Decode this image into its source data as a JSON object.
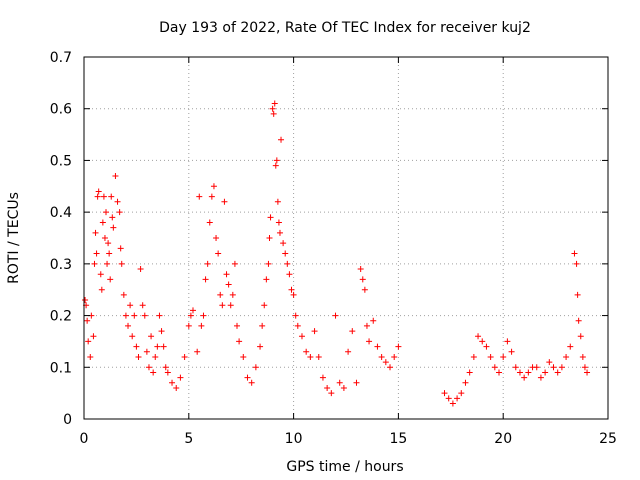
{
  "chart_data": {
    "type": "scatter",
    "title": "Day 193 of 2022, Rate Of TEC Index for receiver kuj2",
    "xlabel": "GPS time / hours",
    "ylabel": "ROTI / TECUs",
    "xlim": [
      0,
      25
    ],
    "ylim": [
      0,
      0.7
    ],
    "xticks": [
      "0",
      "5",
      "10",
      "15",
      "20",
      "25"
    ],
    "yticks": [
      "0",
      "0.1",
      "0.2",
      "0.3",
      "0.4",
      "0.5",
      "0.6",
      "0.7"
    ],
    "grid": true,
    "marker": "plus",
    "color": "#ff0000",
    "series": [
      {
        "points": [
          [
            0.05,
            0.23
          ],
          [
            0.1,
            0.22
          ],
          [
            0.15,
            0.19
          ],
          [
            0.2,
            0.15
          ],
          [
            0.3,
            0.12
          ],
          [
            0.35,
            0.2
          ],
          [
            0.45,
            0.16
          ],
          [
            0.5,
            0.3
          ],
          [
            0.55,
            0.36
          ],
          [
            0.6,
            0.32
          ],
          [
            0.65,
            0.43
          ],
          [
            0.7,
            0.44
          ],
          [
            0.8,
            0.28
          ],
          [
            0.85,
            0.25
          ],
          [
            0.9,
            0.38
          ],
          [
            0.95,
            0.43
          ],
          [
            1.0,
            0.35
          ],
          [
            1.05,
            0.4
          ],
          [
            1.1,
            0.3
          ],
          [
            1.15,
            0.34
          ],
          [
            1.2,
            0.32
          ],
          [
            1.25,
            0.27
          ],
          [
            1.3,
            0.43
          ],
          [
            1.35,
            0.39
          ],
          [
            1.4,
            0.37
          ],
          [
            1.5,
            0.47
          ],
          [
            1.6,
            0.42
          ],
          [
            1.7,
            0.4
          ],
          [
            1.75,
            0.33
          ],
          [
            1.8,
            0.3
          ],
          [
            1.9,
            0.24
          ],
          [
            2.0,
            0.2
          ],
          [
            2.1,
            0.18
          ],
          [
            2.2,
            0.22
          ],
          [
            2.3,
            0.16
          ],
          [
            2.4,
            0.2
          ],
          [
            2.5,
            0.14
          ],
          [
            2.6,
            0.12
          ],
          [
            2.7,
            0.29
          ],
          [
            2.8,
            0.22
          ],
          [
            2.9,
            0.2
          ],
          [
            3.0,
            0.13
          ],
          [
            3.1,
            0.1
          ],
          [
            3.2,
            0.16
          ],
          [
            3.3,
            0.09
          ],
          [
            3.4,
            0.12
          ],
          [
            3.5,
            0.14
          ],
          [
            3.6,
            0.2
          ],
          [
            3.7,
            0.17
          ],
          [
            3.8,
            0.14
          ],
          [
            3.9,
            0.1
          ],
          [
            4.0,
            0.09
          ],
          [
            4.2,
            0.07
          ],
          [
            4.4,
            0.06
          ],
          [
            4.6,
            0.08
          ],
          [
            4.8,
            0.12
          ],
          [
            5.0,
            0.18
          ],
          [
            5.1,
            0.2
          ],
          [
            5.2,
            0.21
          ],
          [
            5.4,
            0.13
          ],
          [
            5.5,
            0.43
          ],
          [
            5.6,
            0.18
          ],
          [
            5.7,
            0.2
          ],
          [
            5.8,
            0.27
          ],
          [
            5.9,
            0.3
          ],
          [
            6.0,
            0.38
          ],
          [
            6.1,
            0.43
          ],
          [
            6.2,
            0.45
          ],
          [
            6.3,
            0.35
          ],
          [
            6.4,
            0.32
          ],
          [
            6.5,
            0.24
          ],
          [
            6.6,
            0.22
          ],
          [
            6.7,
            0.42
          ],
          [
            6.8,
            0.28
          ],
          [
            6.9,
            0.26
          ],
          [
            7.0,
            0.22
          ],
          [
            7.1,
            0.24
          ],
          [
            7.2,
            0.3
          ],
          [
            7.3,
            0.18
          ],
          [
            7.4,
            0.15
          ],
          [
            7.6,
            0.12
          ],
          [
            7.8,
            0.08
          ],
          [
            8.0,
            0.07
          ],
          [
            8.2,
            0.1
          ],
          [
            8.4,
            0.14
          ],
          [
            8.5,
            0.18
          ],
          [
            8.6,
            0.22
          ],
          [
            8.7,
            0.27
          ],
          [
            8.8,
            0.3
          ],
          [
            8.85,
            0.35
          ],
          [
            8.9,
            0.39
          ],
          [
            9.0,
            0.6
          ],
          [
            9.05,
            0.59
          ],
          [
            9.1,
            0.61
          ],
          [
            9.15,
            0.49
          ],
          [
            9.2,
            0.5
          ],
          [
            9.25,
            0.42
          ],
          [
            9.3,
            0.38
          ],
          [
            9.35,
            0.36
          ],
          [
            9.4,
            0.54
          ],
          [
            9.5,
            0.34
          ],
          [
            9.6,
            0.32
          ],
          [
            9.7,
            0.3
          ],
          [
            9.8,
            0.28
          ],
          [
            9.9,
            0.25
          ],
          [
            10.0,
            0.24
          ],
          [
            10.1,
            0.2
          ],
          [
            10.2,
            0.18
          ],
          [
            10.4,
            0.16
          ],
          [
            10.6,
            0.13
          ],
          [
            10.8,
            0.12
          ],
          [
            11.0,
            0.17
          ],
          [
            11.2,
            0.12
          ],
          [
            11.4,
            0.08
          ],
          [
            11.6,
            0.06
          ],
          [
            11.8,
            0.05
          ],
          [
            12.0,
            0.2
          ],
          [
            12.2,
            0.07
          ],
          [
            12.4,
            0.06
          ],
          [
            12.6,
            0.13
          ],
          [
            12.8,
            0.17
          ],
          [
            13.0,
            0.07
          ],
          [
            13.2,
            0.29
          ],
          [
            13.3,
            0.27
          ],
          [
            13.4,
            0.25
          ],
          [
            13.5,
            0.18
          ],
          [
            13.6,
            0.15
          ],
          [
            13.8,
            0.19
          ],
          [
            14.0,
            0.14
          ],
          [
            14.2,
            0.12
          ],
          [
            14.4,
            0.11
          ],
          [
            14.6,
            0.1
          ],
          [
            14.8,
            0.12
          ],
          [
            15.0,
            0.14
          ],
          [
            17.2,
            0.05
          ],
          [
            17.4,
            0.04
          ],
          [
            17.6,
            0.03
          ],
          [
            17.8,
            0.04
          ],
          [
            18.0,
            0.05
          ],
          [
            18.2,
            0.07
          ],
          [
            18.4,
            0.09
          ],
          [
            18.6,
            0.12
          ],
          [
            18.8,
            0.16
          ],
          [
            19.0,
            0.15
          ],
          [
            19.2,
            0.14
          ],
          [
            19.4,
            0.12
          ],
          [
            19.6,
            0.1
          ],
          [
            19.8,
            0.09
          ],
          [
            20.0,
            0.12
          ],
          [
            20.2,
            0.15
          ],
          [
            20.4,
            0.13
          ],
          [
            20.6,
            0.1
          ],
          [
            20.8,
            0.09
          ],
          [
            21.0,
            0.08
          ],
          [
            21.2,
            0.09
          ],
          [
            21.4,
            0.1
          ],
          [
            21.6,
            0.1
          ],
          [
            21.8,
            0.08
          ],
          [
            22.0,
            0.09
          ],
          [
            22.2,
            0.11
          ],
          [
            22.4,
            0.1
          ],
          [
            22.6,
            0.09
          ],
          [
            22.8,
            0.1
          ],
          [
            23.0,
            0.12
          ],
          [
            23.2,
            0.14
          ],
          [
            23.4,
            0.32
          ],
          [
            23.5,
            0.3
          ],
          [
            23.55,
            0.24
          ],
          [
            23.6,
            0.19
          ],
          [
            23.7,
            0.16
          ],
          [
            23.8,
            0.12
          ],
          [
            23.9,
            0.1
          ],
          [
            24.0,
            0.09
          ]
        ]
      }
    ]
  }
}
